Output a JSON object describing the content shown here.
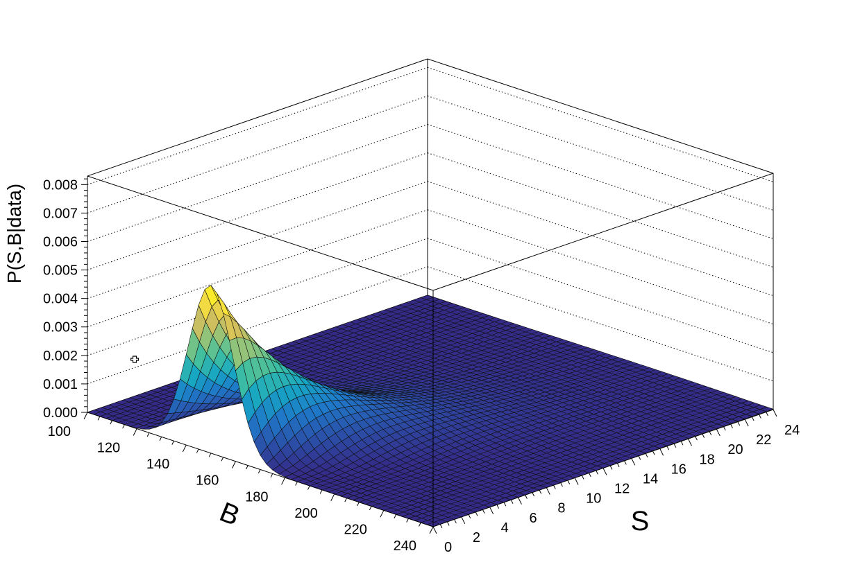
{
  "chart_data": {
    "type": "surface",
    "title": "",
    "x_axis": {
      "label": "B",
      "range": [
        100,
        240
      ],
      "ticks": [
        100,
        120,
        140,
        160,
        180,
        200,
        220,
        240
      ]
    },
    "y_axis": {
      "label": "S",
      "range": [
        0,
        24
      ],
      "ticks": [
        0,
        2,
        4,
        6,
        8,
        10,
        12,
        14,
        16,
        18,
        20,
        22,
        24
      ]
    },
    "z_axis": {
      "label": "P(S,B|data)",
      "range": [
        0,
        0.0083
      ],
      "ticks": [
        0.0,
        0.001,
        0.002,
        0.003,
        0.004,
        0.005,
        0.006,
        0.007,
        0.008
      ],
      "tick_labels": [
        "0.000",
        "0.001",
        "0.002",
        "0.003",
        "0.004",
        "0.005",
        "0.006",
        "0.007",
        "0.008"
      ]
    },
    "surface": {
      "description_values": {
        "peak_B": 150,
        "peak_S": 0,
        "peak_value": 0.0059,
        "sigma_B": 9.0,
        "sigma_B_growth_per_S": 0.12,
        "S_decay_scale": 4.8,
        "ridge_B_slope_per_S": 1.8
      }
    },
    "colormap": [
      "#352a87",
      "#2b4fa8",
      "#1f78c8",
      "#17a6c4",
      "#3fbfa0",
      "#8cc47c",
      "#d2be5d",
      "#f9e03c",
      "#f9fb0e"
    ],
    "grid": true
  }
}
